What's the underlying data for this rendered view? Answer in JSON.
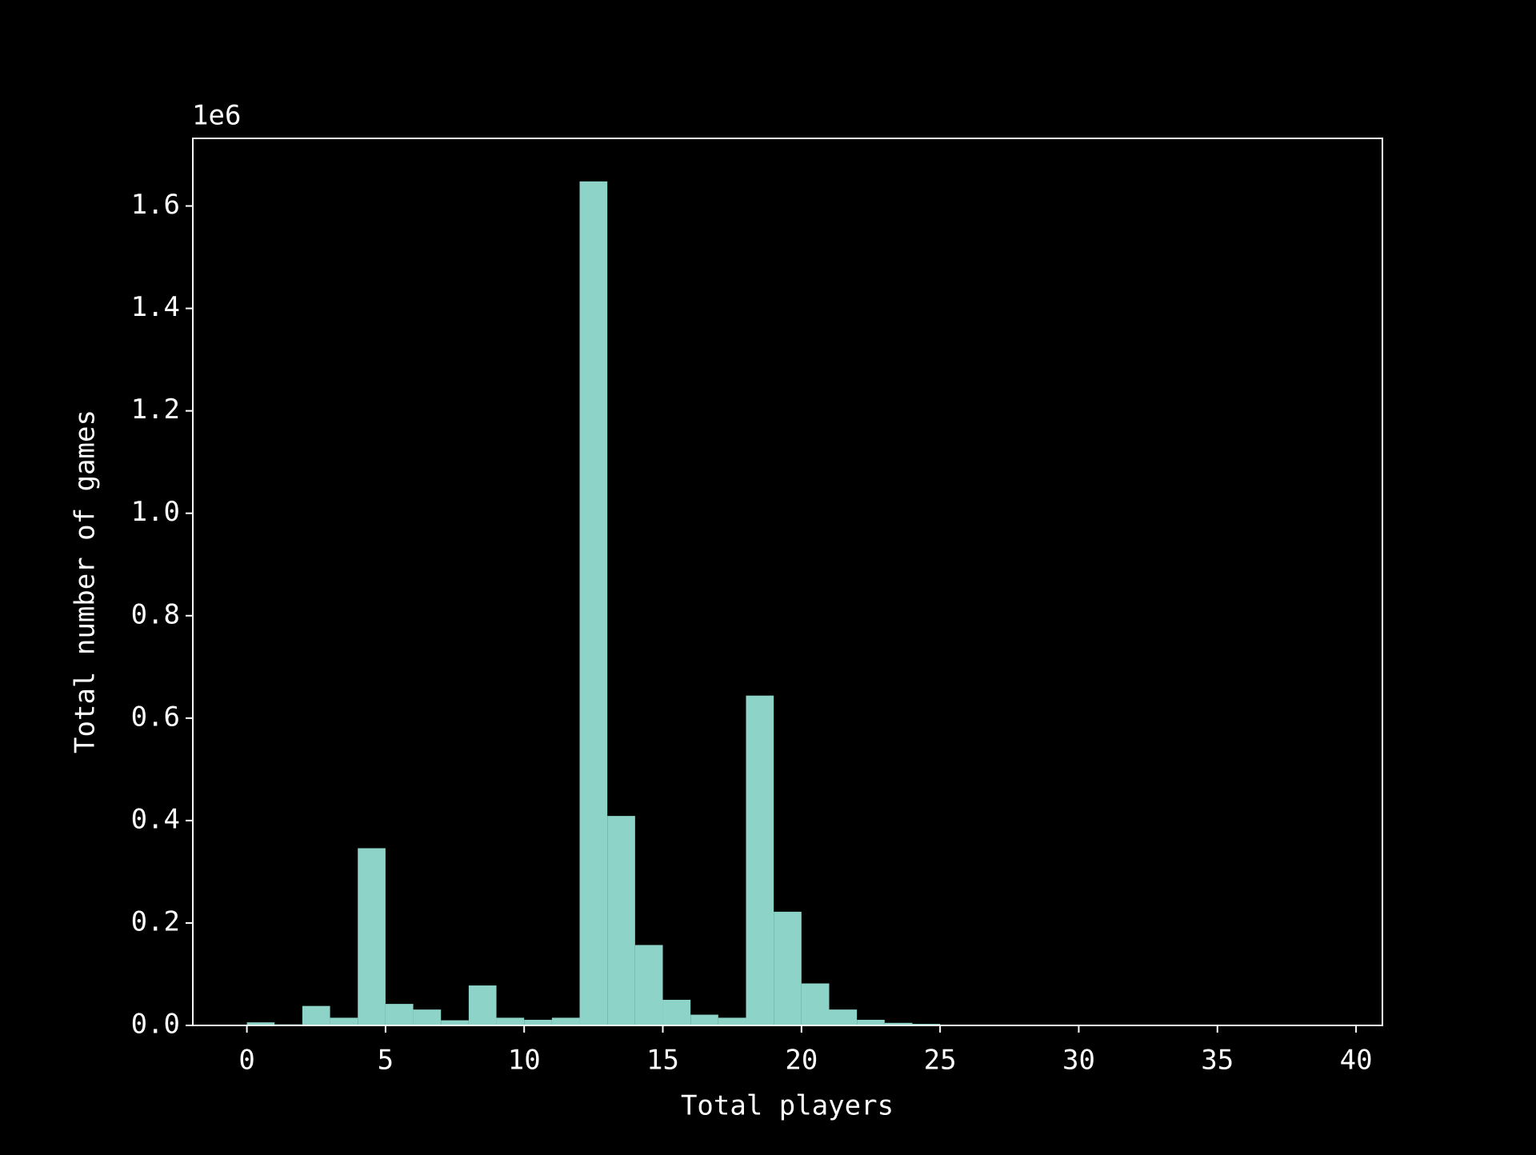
{
  "chart_data": {
    "type": "histogram",
    "xlabel": "Total players",
    "ylabel": "Total number of games",
    "y_offset_label": "1e6",
    "bins": [
      0,
      1,
      2,
      3,
      4,
      5,
      6,
      7,
      8,
      9,
      10,
      11,
      12,
      13,
      14,
      15,
      16,
      17,
      18,
      19,
      20,
      21,
      22,
      23,
      24,
      25,
      26,
      27,
      28,
      29,
      30,
      31,
      32,
      33,
      34,
      35,
      36,
      37,
      38,
      39,
      40
    ],
    "counts": [
      6000,
      2000,
      38000,
      15000,
      346000,
      42000,
      31000,
      10000,
      78000,
      15000,
      11000,
      15000,
      1648000,
      409000,
      157000,
      50000,
      21000,
      15000,
      644000,
      222000,
      82000,
      31000,
      11000,
      5000,
      3000,
      1000,
      0,
      0,
      0,
      0,
      0,
      0,
      0,
      0,
      0,
      0,
      0,
      0,
      0,
      0
    ],
    "color": "#8dd3c7",
    "xlim": [
      -1.95,
      40.95
    ],
    "xticks": [
      0,
      5,
      10,
      15,
      20,
      25,
      30,
      35,
      40
    ],
    "ylim": [
      0,
      1732000
    ],
    "yticks": [
      {
        "value": 0,
        "label": "0.0"
      },
      {
        "value": 200000,
        "label": "0.2"
      },
      {
        "value": 400000,
        "label": "0.4"
      },
      {
        "value": 600000,
        "label": "0.6"
      },
      {
        "value": 800000,
        "label": "0.8"
      },
      {
        "value": 1000000,
        "label": "1.0"
      },
      {
        "value": 1200000,
        "label": "1.2"
      },
      {
        "value": 1400000,
        "label": "1.4"
      },
      {
        "value": 1600000,
        "label": "1.6"
      }
    ]
  }
}
